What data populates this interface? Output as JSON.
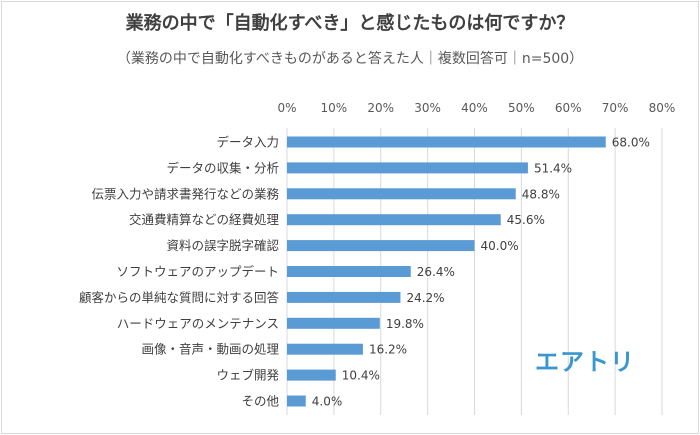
{
  "chart_data": {
    "type": "bar",
    "orientation": "horizontal",
    "title": "業務の中で「自動化すべき」と感じたものは何ですか？",
    "subtitle": "（業務の中で自動化すべきものがあると答えた人｜複数回答可｜n=500）",
    "categories": [
      "データ入力",
      "データの収集・分析",
      "伝票入力や請求書発行などの業務",
      "交通費精算などの経費処理",
      "資料の誤字脱字確認",
      "ソフトウェアのアップデート",
      "顧客からの単純な質問に対する回答",
      "ハードウェアのメンテナンス",
      "画像・音声・動画の処理",
      "ウェブ開発",
      "その他"
    ],
    "values": [
      68.0,
      51.4,
      48.8,
      45.6,
      40.0,
      26.4,
      24.2,
      19.8,
      16.2,
      10.4,
      4.0
    ],
    "xlim": [
      0,
      80
    ],
    "ticks": [
      "0%",
      "10%",
      "20%",
      "30%",
      "40%",
      "50%",
      "60%",
      "70%",
      "80%"
    ],
    "tick_values": [
      0,
      10,
      20,
      30,
      40,
      50,
      60,
      70,
      80
    ],
    "grid": true,
    "bar_color": "#5b9bd5",
    "axis_position": "top"
  },
  "logo": "エアトリ"
}
